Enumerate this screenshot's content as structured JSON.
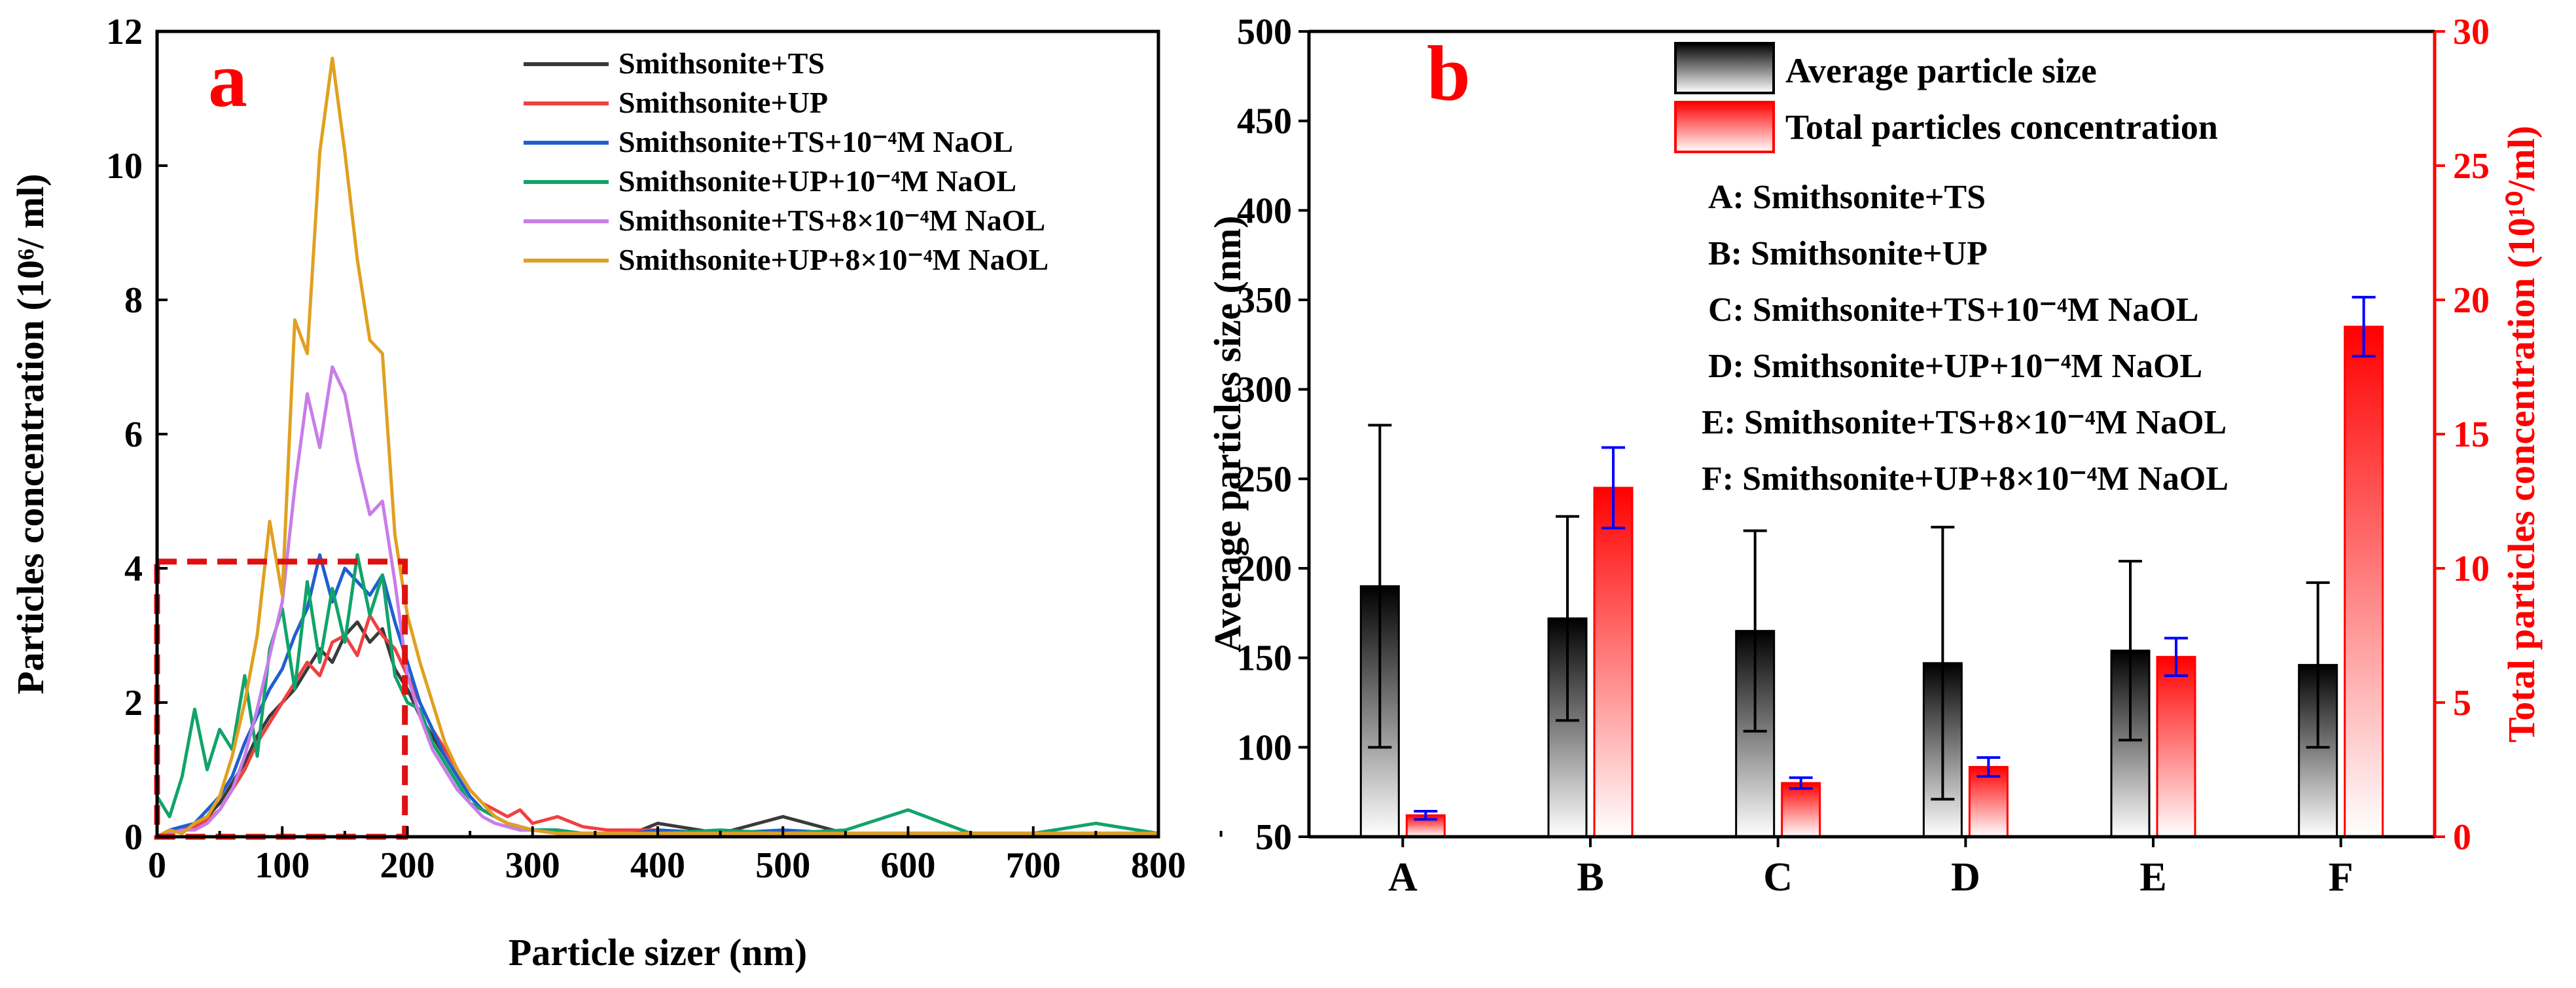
{
  "chart_data": [
    {
      "type": "line",
      "panel_label": "a",
      "xlabel": "Particle sizer (nm)",
      "ylabel": "Particles concentration (10⁶/ ml)",
      "xlim": [
        0,
        800
      ],
      "ylim": [
        0,
        12
      ],
      "xticks": [
        "0",
        "100",
        "200",
        "300",
        "400",
        "500",
        "600",
        "700",
        "800"
      ],
      "yticks": [
        "0",
        "2",
        "4",
        "6",
        "8",
        "10",
        "12"
      ],
      "legend_position": "top-right",
      "highlight_box": {
        "x0": 0,
        "x1": 198,
        "y0": 0,
        "y1": 4.1,
        "style": "red-dashed"
      },
      "series": [
        {
          "name": "Smithsonite+TS",
          "color": "#3a3a3a",
          "x": [
            0,
            10,
            20,
            30,
            40,
            50,
            60,
            70,
            80,
            90,
            100,
            110,
            120,
            130,
            140,
            150,
            160,
            170,
            180,
            190,
            200,
            210,
            220,
            230,
            240,
            250,
            260,
            270,
            280,
            290,
            300,
            320,
            340,
            360,
            380,
            400,
            450,
            500,
            550,
            600,
            650,
            700,
            750,
            800
          ],
          "y": [
            0,
            0.05,
            0.1,
            0.2,
            0.3,
            0.5,
            0.8,
            1.1,
            1.5,
            1.8,
            2.0,
            2.2,
            2.5,
            2.8,
            2.6,
            3.0,
            3.2,
            2.9,
            3.1,
            2.5,
            2.2,
            1.8,
            1.5,
            1.2,
            0.9,
            0.6,
            0.4,
            0.3,
            0.2,
            0.15,
            0.1,
            0.08,
            0.05,
            0.05,
            0.05,
            0.2,
            0.05,
            0.3,
            0.05,
            0.05,
            0.05,
            0.05,
            0.05,
            0.05
          ]
        },
        {
          "name": "Smithsonite+UP",
          "color": "#f04040",
          "x": [
            0,
            10,
            20,
            30,
            40,
            50,
            60,
            70,
            80,
            90,
            100,
            110,
            120,
            130,
            140,
            150,
            160,
            170,
            180,
            190,
            200,
            210,
            220,
            230,
            240,
            250,
            260,
            270,
            280,
            290,
            300,
            320,
            340,
            360,
            380,
            400,
            450,
            500,
            550,
            600,
            650,
            700,
            750,
            800
          ],
          "y": [
            0,
            0.05,
            0.1,
            0.15,
            0.25,
            0.4,
            0.7,
            1.0,
            1.4,
            1.7,
            2.0,
            2.3,
            2.6,
            2.4,
            2.9,
            3.0,
            2.7,
            3.3,
            3.0,
            2.8,
            2.4,
            2.0,
            1.6,
            1.3,
            1.0,
            0.7,
            0.5,
            0.4,
            0.3,
            0.4,
            0.2,
            0.3,
            0.15,
            0.1,
            0.1,
            0.1,
            0.05,
            0.05,
            0.05,
            0.05,
            0.05,
            0.05,
            0.05,
            0.05
          ]
        },
        {
          "name": "Smithsonite+TS+10⁻⁴M NaOL",
          "color": "#1f5fd0",
          "x": [
            0,
            10,
            20,
            30,
            40,
            50,
            60,
            70,
            80,
            90,
            100,
            110,
            120,
            130,
            140,
            150,
            160,
            170,
            180,
            190,
            200,
            210,
            220,
            230,
            240,
            250,
            260,
            270,
            280,
            290,
            300,
            320,
            340,
            360,
            380,
            400,
            450,
            500,
            550,
            600,
            650,
            700,
            750,
            800
          ],
          "y": [
            0,
            0.1,
            0.15,
            0.2,
            0.4,
            0.6,
            0.9,
            1.4,
            1.8,
            2.2,
            2.5,
            3.0,
            3.4,
            4.2,
            3.5,
            4.0,
            3.8,
            3.6,
            3.9,
            3.2,
            2.6,
            2.0,
            1.6,
            1.2,
            0.9,
            0.6,
            0.4,
            0.3,
            0.2,
            0.1,
            0.1,
            0.1,
            0.05,
            0.05,
            0.05,
            0.1,
            0.05,
            0.1,
            0.05,
            0.05,
            0.05,
            0.05,
            0.05,
            0.05
          ]
        },
        {
          "name": "Smithsonite+UP+10⁻⁴M NaOL",
          "color": "#12a36a",
          "x": [
            0,
            10,
            20,
            30,
            40,
            50,
            60,
            70,
            80,
            90,
            100,
            110,
            120,
            130,
            140,
            150,
            160,
            170,
            180,
            190,
            200,
            210,
            220,
            230,
            240,
            250,
            260,
            270,
            280,
            290,
            300,
            320,
            340,
            360,
            380,
            400,
            450,
            500,
            550,
            600,
            650,
            700,
            750,
            800
          ],
          "y": [
            0.6,
            0.3,
            0.9,
            1.9,
            1.0,
            1.6,
            1.3,
            2.4,
            1.2,
            2.8,
            3.4,
            2.2,
            3.8,
            2.6,
            3.7,
            2.9,
            4.2,
            3.3,
            3.9,
            2.4,
            2.0,
            1.9,
            1.4,
            1.1,
            0.8,
            0.5,
            0.4,
            0.3,
            0.2,
            0.15,
            0.1,
            0.1,
            0.05,
            0.05,
            0.05,
            0.05,
            0.1,
            0.05,
            0.1,
            0.4,
            0.05,
            0.05,
            0.2,
            0.05
          ]
        },
        {
          "name": "Smithsonite+TS+8×10⁻⁴M NaOL",
          "color": "#c87de8",
          "x": [
            0,
            10,
            20,
            30,
            40,
            50,
            60,
            70,
            80,
            90,
            100,
            110,
            120,
            130,
            140,
            150,
            160,
            170,
            180,
            190,
            200,
            210,
            220,
            230,
            240,
            250,
            260,
            270,
            280,
            290,
            300,
            320,
            340,
            360,
            380,
            400,
            450,
            500,
            550,
            600,
            650,
            700,
            750,
            800
          ],
          "y": [
            0,
            0.05,
            0.1,
            0.1,
            0.2,
            0.4,
            0.7,
            1.2,
            1.9,
            2.7,
            3.5,
            5.2,
            6.6,
            5.8,
            7.0,
            6.6,
            5.6,
            4.8,
            5.0,
            3.8,
            2.4,
            1.8,
            1.3,
            1.0,
            0.7,
            0.5,
            0.3,
            0.2,
            0.15,
            0.1,
            0.1,
            0.05,
            0.05,
            0.05,
            0.05,
            0.05,
            0.05,
            0.05,
            0.05,
            0.05,
            0.05,
            0.05,
            0.05,
            0.05
          ]
        },
        {
          "name": "Smithsonite+UP+8×10⁻⁴M NaOL",
          "color": "#e0a020",
          "x": [
            0,
            10,
            20,
            30,
            40,
            50,
            60,
            70,
            80,
            90,
            100,
            110,
            120,
            130,
            140,
            150,
            160,
            170,
            180,
            190,
            200,
            210,
            220,
            230,
            240,
            250,
            260,
            270,
            280,
            290,
            300,
            320,
            340,
            360,
            380,
            400,
            450,
            500,
            550,
            600,
            650,
            700,
            750,
            800
          ],
          "y": [
            0,
            0.1,
            0.05,
            0.2,
            0.3,
            0.6,
            1.2,
            2.0,
            3.0,
            4.7,
            3.6,
            7.7,
            7.2,
            10.2,
            11.6,
            10.2,
            8.6,
            7.4,
            7.2,
            4.5,
            3.3,
            2.6,
            2.0,
            1.4,
            1.0,
            0.7,
            0.5,
            0.3,
            0.2,
            0.15,
            0.1,
            0.05,
            0.05,
            0.05,
            0.05,
            0.05,
            0.05,
            0.05,
            0.05,
            0.05,
            0.05,
            0.05,
            0.05,
            0.05
          ]
        }
      ]
    },
    {
      "type": "bar",
      "panel_label": "b",
      "categories": [
        "A",
        "B",
        "C",
        "D",
        "E",
        "F"
      ],
      "ylabel": "Average particles size (nm)",
      "ylabel_right": "Total particles concentration (10¹⁰/ml)",
      "ylim": [
        50,
        500
      ],
      "ylim_right": [
        0,
        30
      ],
      "yticks": [
        "50",
        "100",
        "150",
        "200",
        "250",
        "300",
        "350",
        "400",
        "450",
        "500"
      ],
      "yticks_right": [
        "0",
        "5",
        "10",
        "15",
        "20",
        "25",
        "30"
      ],
      "legend_position": "top-right",
      "series": [
        {
          "name": "Average particle size",
          "axis": "left",
          "fill": "black-to-white gradient",
          "values": [
            190,
            172,
            165,
            147,
            154,
            146
          ],
          "errors": [
            90,
            57,
            56,
            76,
            50,
            46
          ]
        },
        {
          "name": "Total particles concentration",
          "axis": "right",
          "fill": "red-to-white gradient",
          "values": [
            0.8,
            13.0,
            2.0,
            2.6,
            6.7,
            19.0
          ],
          "errors": [
            0.15,
            1.5,
            0.2,
            0.35,
            0.7,
            1.1
          ]
        }
      ],
      "category_key": [
        "A: Smithsonite+TS",
        "B: Smithsonite+UP",
        "C: Smithsonite+TS+10⁻⁴M NaOL",
        "D: Smithsonite+UP+10⁻⁴M NaOL",
        "E: Smithsonite+TS+8×10⁻⁴M NaOL",
        "F: Smithsonite+UP+8×10⁻⁴M NaOL"
      ]
    }
  ],
  "colors": {
    "axis": "#000000",
    "accent_red": "#ff0000",
    "error_blue": "#0000ff"
  }
}
